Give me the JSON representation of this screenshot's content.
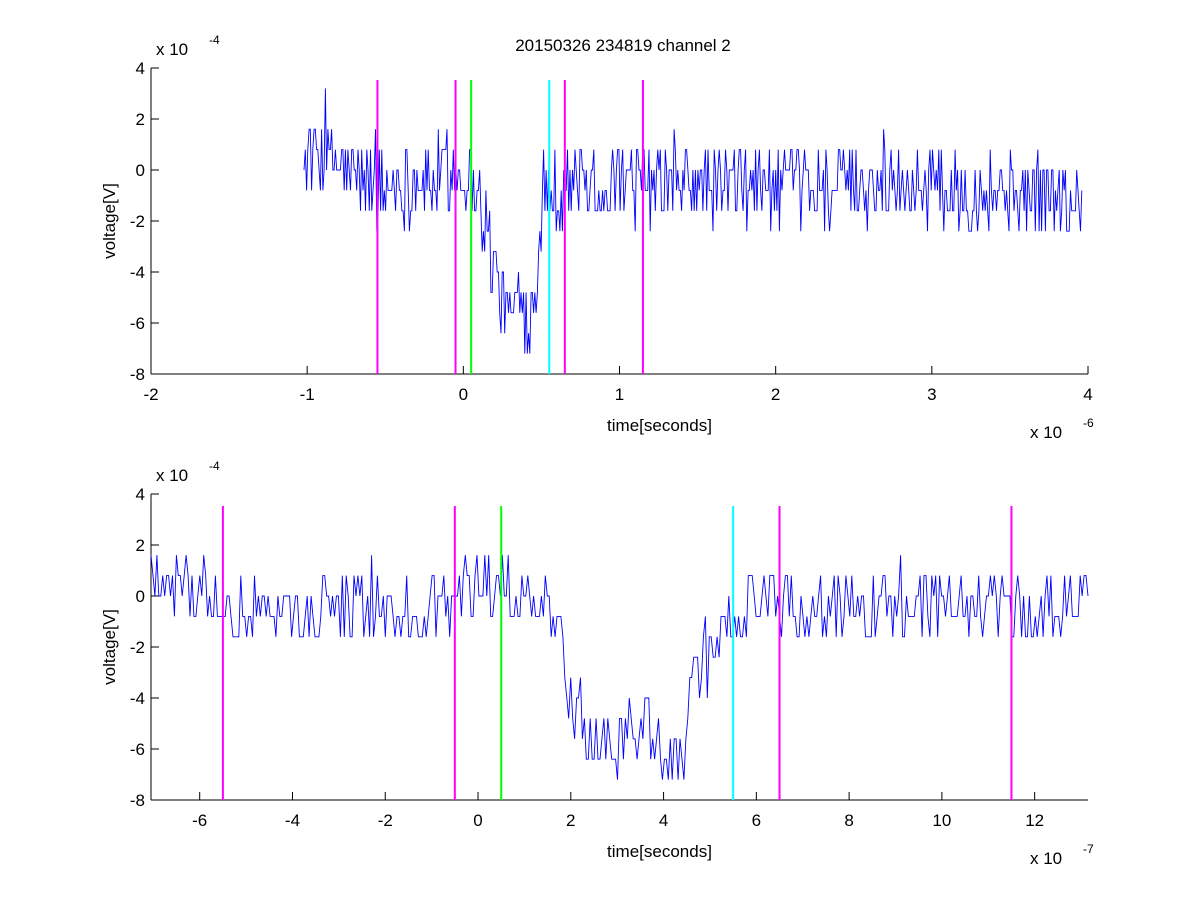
{
  "figure": {
    "title": "20150326 234819 channel 2"
  },
  "chart_data": [
    {
      "type": "line",
      "title": "20150326 234819 channel 2",
      "xlabel": "time[seconds]",
      "ylabel": "voltage[V]",
      "x_multiplier_text": "x 10",
      "x_multiplier_exp": "-6",
      "y_multiplier_text": "x 10",
      "y_multiplier_exp": "-4",
      "xlim": [
        -2,
        4
      ],
      "ylim": [
        -8,
        4
      ],
      "xticks": [
        -2,
        -1,
        0,
        1,
        2,
        3,
        4
      ],
      "yticks": [
        -8,
        -6,
        -4,
        -2,
        0,
        2,
        4
      ],
      "grid": false,
      "series": [
        {
          "color": "#0000ff",
          "x_range": [
            -1.02,
            3.96
          ],
          "description_points": [
            [
              -1.02,
              0.8
            ],
            [
              -0.5,
              -0.8
            ],
            [
              0.0,
              0.0
            ],
            [
              0.1,
              -1.0
            ],
            [
              0.15,
              -2.4
            ],
            [
              0.2,
              -4.0
            ],
            [
              0.25,
              -5.2
            ],
            [
              0.3,
              -5.6
            ],
            [
              0.35,
              -5.4
            ],
            [
              0.4,
              -6.0
            ],
            [
              0.45,
              -5.0
            ],
            [
              0.5,
              -2.0
            ],
            [
              0.55,
              -0.8
            ],
            [
              0.7,
              -0.4
            ],
            [
              1.0,
              -0.6
            ],
            [
              2.0,
              -0.6
            ],
            [
              3.0,
              -0.6
            ],
            [
              3.96,
              -1.2
            ]
          ]
        }
      ],
      "vertical_markers": [
        {
          "x": -0.55,
          "color": "#ff00ff"
        },
        {
          "x": -0.05,
          "color": "#ff00ff"
        },
        {
          "x": 0.05,
          "color": "#00ff00"
        },
        {
          "x": 0.55,
          "color": "#00ffff"
        },
        {
          "x": 0.65,
          "color": "#ff00ff"
        },
        {
          "x": 1.15,
          "color": "#ff00ff"
        }
      ]
    },
    {
      "type": "line",
      "title": "",
      "xlabel": "time[seconds]",
      "ylabel": "voltage[V]",
      "x_multiplier_text": "x 10",
      "x_multiplier_exp": "-7",
      "y_multiplier_text": "x 10",
      "y_multiplier_exp": "-4",
      "xlim": [
        -7.05,
        13.15
      ],
      "ylim": [
        -8,
        4
      ],
      "xticks": [
        -6,
        -4,
        -2,
        0,
        2,
        4,
        6,
        8,
        10,
        12
      ],
      "yticks": [
        -8,
        -6,
        -4,
        -2,
        0,
        2,
        4
      ],
      "grid": false,
      "series": [
        {
          "color": "#0000ff",
          "x_range": [
            -7.05,
            13.15
          ],
          "description_points": [
            [
              -7.0,
              1.0
            ],
            [
              -5.0,
              -0.8
            ],
            [
              -1.0,
              -0.4
            ],
            [
              0.0,
              0.6
            ],
            [
              1.5,
              -0.2
            ],
            [
              1.8,
              -2.0
            ],
            [
              2.0,
              -4.0
            ],
            [
              2.4,
              -5.4
            ],
            [
              3.0,
              -5.6
            ],
            [
              3.5,
              -5.2
            ],
            [
              4.0,
              -5.8
            ],
            [
              4.4,
              -6.8
            ],
            [
              4.6,
              -3.0
            ],
            [
              5.0,
              -2.0
            ],
            [
              5.5,
              -0.8
            ],
            [
              6.0,
              0.0
            ],
            [
              8.0,
              -0.6
            ],
            [
              10.0,
              -0.4
            ],
            [
              12.0,
              -0.6
            ],
            [
              13.15,
              0.0
            ]
          ]
        }
      ],
      "vertical_markers": [
        {
          "x": -5.5,
          "color": "#ff00ff"
        },
        {
          "x": -0.5,
          "color": "#ff00ff"
        },
        {
          "x": 0.5,
          "color": "#00ff00"
        },
        {
          "x": 5.5,
          "color": "#00ffff"
        },
        {
          "x": 6.5,
          "color": "#ff00ff"
        },
        {
          "x": 11.5,
          "color": "#ff00ff"
        }
      ]
    }
  ]
}
